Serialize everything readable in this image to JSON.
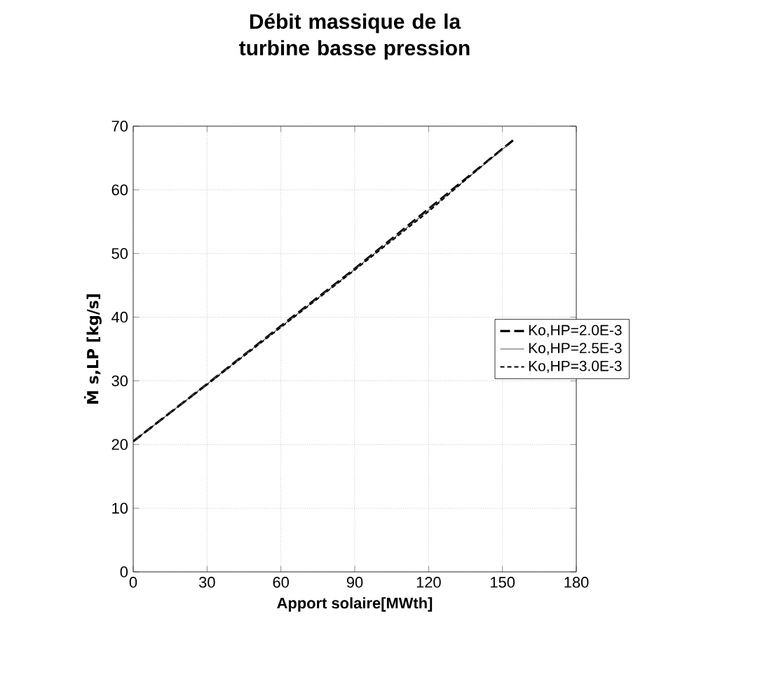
{
  "chart_data": {
    "type": "line",
    "title": "Débit massique de la turbine basse pression",
    "xlabel": "Apport solaire[MWth]",
    "ylabel": "Ṁ s,LP [kg/s]",
    "xlim": [
      0,
      180
    ],
    "xticks": [
      0,
      30,
      60,
      90,
      120,
      150,
      180
    ],
    "ylim": [
      0,
      70
    ],
    "yticks": [
      0,
      10,
      20,
      30,
      40,
      50,
      60,
      70
    ],
    "grid": true,
    "legend": "right",
    "marker": "none",
    "series": [
      {
        "name": "Ko,HP=2.0E-3",
        "color": "#000000",
        "line_style": "dashed",
        "x": [
          0,
          30,
          60,
          90,
          120,
          155
        ],
        "values": [
          20.5,
          29.5,
          38.6,
          47.6,
          57,
          68
        ]
      },
      {
        "name": "Ko,HP=2.5E-3",
        "color": "#555555",
        "line_style": "solid",
        "x": [
          0,
          30,
          60,
          90,
          120,
          152
        ],
        "values": [
          20.5,
          29.5,
          38.5,
          47.5,
          56.8,
          67
        ]
      },
      {
        "name": "Ko,HP=3.0E-3",
        "color": "#000000",
        "line_style": "dotted",
        "x": [
          0,
          30,
          60,
          90,
          120,
          150
        ],
        "values": [
          20.5,
          29.4,
          38.4,
          47.4,
          56.6,
          66.5
        ]
      }
    ]
  }
}
